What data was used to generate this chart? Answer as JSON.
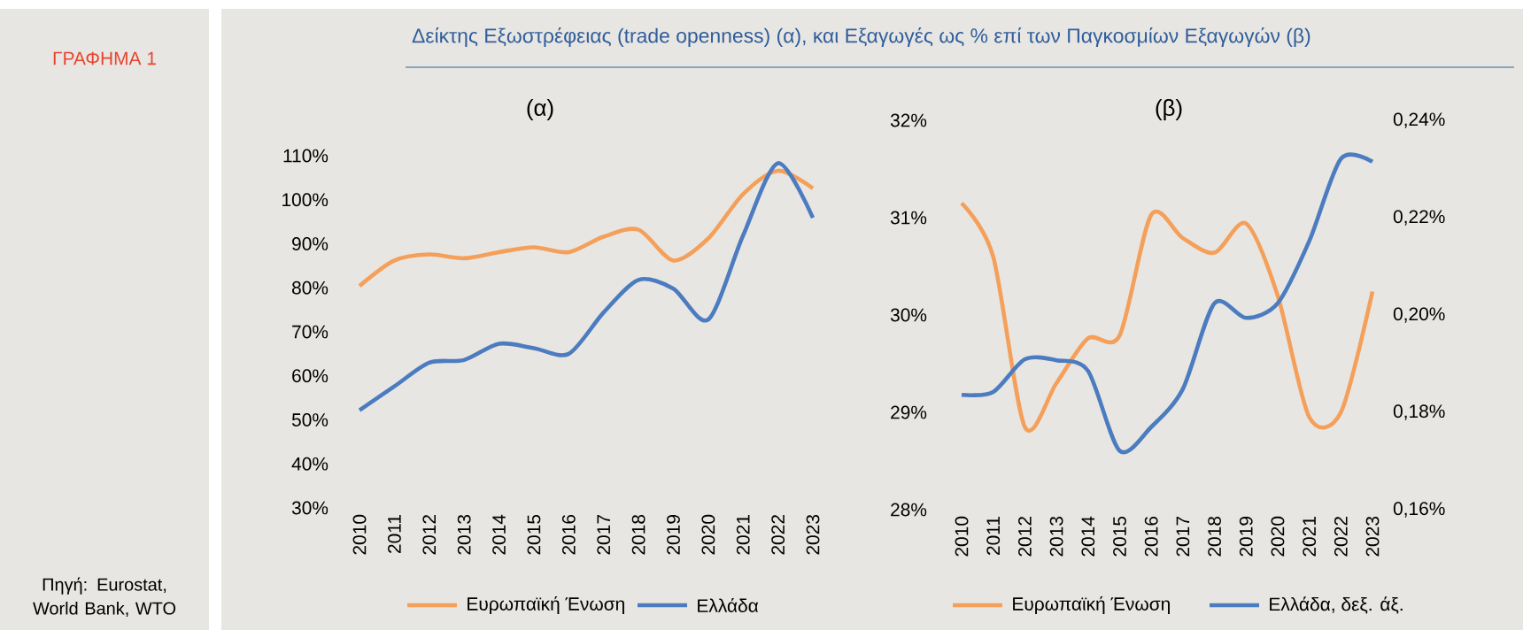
{
  "chart_data": [
    {
      "type": "line",
      "title": "(α)",
      "annotations": [
        "ΓΡΑΦΗΜΑ 1",
        "Δείκτης Εξωστρέφειας (trade openness) (α), και Εξαγωγές ως % επί των Παγκοσμίων Εξαγωγών (β)",
        "Πηγή: Eurostat, World Bank, WTO"
      ],
      "categories": [
        "2010",
        "2011",
        "2012",
        "2013",
        "2014",
        "2015",
        "2016",
        "2017",
        "2018",
        "2019",
        "2020",
        "2021",
        "2022",
        "2023"
      ],
      "ylim": [
        30,
        110
      ],
      "yticks": [
        {
          "value": 30,
          "label": "30%"
        },
        {
          "value": 40,
          "label": "40%"
        },
        {
          "value": 50,
          "label": "50%"
        },
        {
          "value": 60,
          "label": "60%"
        },
        {
          "value": 70,
          "label": "70%"
        },
        {
          "value": 80,
          "label": "80%"
        },
        {
          "value": 90,
          "label": "90%"
        },
        {
          "value": 100,
          "label": "100%"
        },
        {
          "value": 110,
          "label": "110%"
        }
      ],
      "legend": "bottom",
      "series": [
        {
          "name": "Ευρωπαϊκή Ένωση",
          "color": "#f4a05a",
          "values": [
            80.4,
            86.2,
            87.6,
            86.7,
            88.1,
            89.2,
            88.1,
            91.6,
            93.2,
            86.2,
            91.2,
            101.3,
            106.6,
            102.6
          ]
        },
        {
          "name": "Ελλάδα",
          "color": "#4c7cc0",
          "values": [
            52.2,
            57.6,
            63.0,
            63.6,
            67.3,
            66.3,
            65.0,
            74.4,
            81.8,
            79.8,
            72.8,
            91.9,
            108.3,
            95.9
          ]
        }
      ]
    },
    {
      "type": "line",
      "title": "(β)",
      "categories": [
        "2010",
        "2011",
        "2012",
        "2013",
        "2014",
        "2015",
        "2016",
        "2017",
        "2018",
        "2019",
        "2020",
        "2021",
        "2022",
        "2023"
      ],
      "ylim": [
        28,
        32
      ],
      "yticks": [
        {
          "value": 28,
          "label": "28%"
        },
        {
          "value": 29,
          "label": "29%"
        },
        {
          "value": 30,
          "label": "30%"
        },
        {
          "value": 31,
          "label": "31%"
        },
        {
          "value": 32,
          "label": "32%"
        }
      ],
      "y2lim": [
        0.16,
        0.24
      ],
      "y2ticks": [
        {
          "value": 0.16,
          "label": "0,16%"
        },
        {
          "value": 0.18,
          "label": "0,18%"
        },
        {
          "value": 0.2,
          "label": "0,20%"
        },
        {
          "value": 0.22,
          "label": "0,22%"
        },
        {
          "value": 0.24,
          "label": "0,24%"
        }
      ],
      "legend": "bottom",
      "series": [
        {
          "name": "Ευρωπαϊκή Ένωση",
          "color": "#f4a05a",
          "values": [
            31.15,
            30.6,
            28.85,
            29.3,
            29.76,
            29.79,
            31.03,
            30.79,
            30.64,
            30.94,
            30.2,
            28.95,
            29.0,
            30.24
          ]
        },
        {
          "name": "Ελλάδα, δεξ. άξ.",
          "color": "#4c7cc0",
          "axis": "y2",
          "values": [
            0.1836,
            0.1842,
            0.1909,
            0.1907,
            0.1885,
            0.1721,
            0.177,
            0.1848,
            0.2024,
            0.1994,
            0.2024,
            0.2152,
            0.2321,
            0.2315
          ]
        }
      ]
    }
  ]
}
